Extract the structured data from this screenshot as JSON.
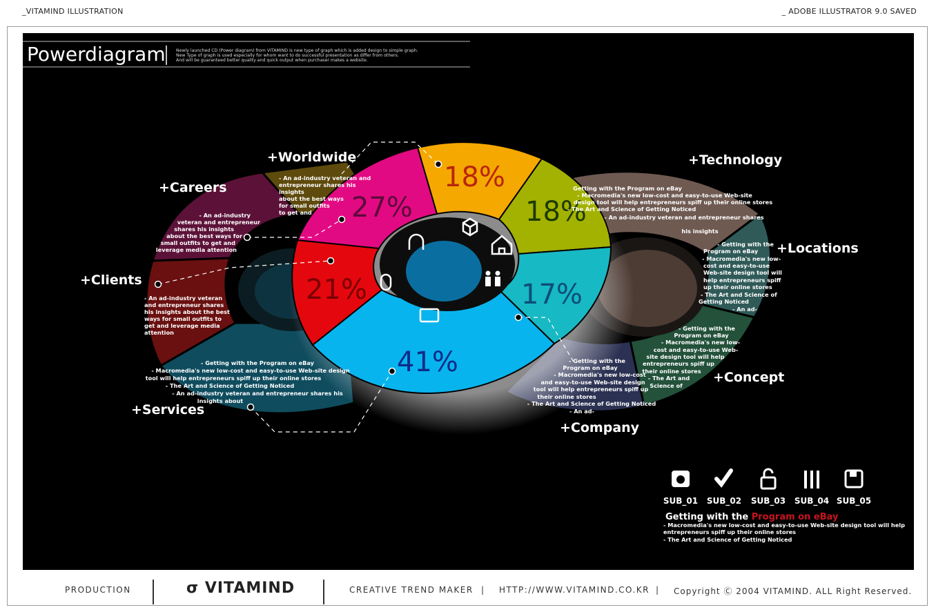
{
  "header": {
    "left": "_VITAMIND ILLUSTRATION",
    "right": "_ ADOBE ILLUSTRATOR 9.0 SAVED"
  },
  "title": {
    "name": "Powerdiagram",
    "desc_lines": [
      "Newly launched CD (Power diagram) from VITAMIND is new type of graph which is added design to simple graph.",
      "New Type of graph is used especially for whom want to do successful presentation as differ from others.",
      "And will be guaranteed better quality and quick output when purchaser makes a website."
    ]
  },
  "center_ring": {
    "segments": [
      {
        "label": "18%",
        "color": "#f5a800",
        "text_color": "#b8260b"
      },
      {
        "label": "18%",
        "color": "#a3b200",
        "text_color": "#1d3a00"
      },
      {
        "label": "17%",
        "color": "#17b9c4",
        "text_color": "#0b4e7a"
      },
      {
        "label": "41%",
        "color": "#08b4ee",
        "text_color": "#0c2d8a"
      },
      {
        "label": "21%",
        "color": "#e4080e",
        "text_color": "#7a0000"
      },
      {
        "label": "27%",
        "color": "#e20a82",
        "text_color": "#5c0a3a"
      }
    ],
    "icons": [
      "box-icon",
      "home-icon",
      "people-icon",
      "tv-icon",
      "mouse-icon",
      "headphones-icon"
    ]
  },
  "left_ring": {
    "categories": [
      {
        "label": "+Worldwide",
        "color": "#5e4a0c",
        "desc": [
          "- An ad-industry veteran and",
          "entrepreneur shares his",
          "insights",
          "about the best ways",
          "for small outfits",
          "to get and"
        ]
      },
      {
        "label": "+Careers",
        "color": "#5c1238",
        "desc": [
          "- An ad-industry",
          "veteran and entrepreneur",
          "shares his insights",
          "about the best ways for",
          "small outfits to get and",
          "leverage media attention"
        ]
      },
      {
        "label": "+Clients",
        "color": "#6a1010",
        "desc": [
          "- An ad-industry veteran",
          "and entrepreneur shares",
          "his insights about the best",
          "ways for small outfits to",
          "get and leverage media",
          "attention"
        ]
      },
      {
        "label": "+Services",
        "color": "#0f4c5e",
        "desc": [
          "- Getting with the Program on                  eBay",
          "- Macromedia's new low-cost and easy-to-use Web-site design",
          "tool will help entrepreneurs spiff up their online stores",
          "- The Art and Science of Getting Noticed",
          "- An ad-industry veteran and entrepreneur shares his",
          "insights about"
        ]
      }
    ]
  },
  "right_ring": {
    "categories": [
      {
        "label": "+Technology",
        "color": "#6f5a52",
        "desc": [
          "Getting with the Program on eBay",
          "- Macromedia's new low-cost and easy-to-use Web-site",
          "design tool will help entrepreneurs spiff up their online stores",
          "- The Art and Science of Getting Noticed",
          "- An ad-industry veteran and entrepreneur shares",
          "his insights"
        ]
      },
      {
        "label": "+Locations",
        "color": "#2f5a58",
        "desc": [
          "- Getting with the",
          "Program on eBay",
          "- Macromedia's new low-",
          "cost and easy-to-use",
          "Web-site design tool will",
          "help entrepreneurs spiff",
          "up their online stores",
          "- The Art and Science of",
          "Getting Noticed",
          "- An ad-"
        ]
      },
      {
        "label": "+Concept",
        "color": "#23513a",
        "desc": [
          "- Getting with the",
          "Program on eBay",
          "- Macromedia's new low-",
          "cost and easy-to-use Web-",
          "site design tool will help",
          "entrepreneurs spiff up",
          "their online stores",
          "- The Art and",
          "Science of"
        ]
      },
      {
        "label": "+Company",
        "color": "#2b3152",
        "desc": [
          "- Getting with the",
          "Program on eBay",
          "- Macromedia's new low-cost",
          "and easy-to-use Web-site design",
          "tool will help entrepreneurs spiff up",
          "their online stores",
          "- The Art and Science of Getting Noticed",
          "- An ad-"
        ]
      }
    ]
  },
  "subs": {
    "items": [
      {
        "label": "SUB_01",
        "icon": "camera-icon"
      },
      {
        "label": "SUB_02",
        "icon": "check-icon"
      },
      {
        "label": "SUB_03",
        "icon": "lock-icon"
      },
      {
        "label": "SUB_04",
        "icon": "tools-icon"
      },
      {
        "label": "SUB_05",
        "icon": "disk-icon"
      }
    ],
    "heading_plain": "Getting with the ",
    "heading_highlight": "Program on eBay",
    "highlight_color": "#c8141e",
    "lines": [
      "- Macromedia's new low-cost and easy-to-use Web-site design tool will help",
      "entrepreneurs spiff up their online stores",
      "- The Art and Science of Getting Noticed"
    ]
  },
  "footer": {
    "production": "PRODUCTION",
    "logo": "VITAMIND",
    "trend": "CREATIVE TREND MAKER",
    "sep": "|",
    "url": "HTTP://WWW.VITAMIND.CO.KR",
    "copyright": "Copyright Ⓒ 2004 VITAMIND. ALL Right Reserved."
  }
}
